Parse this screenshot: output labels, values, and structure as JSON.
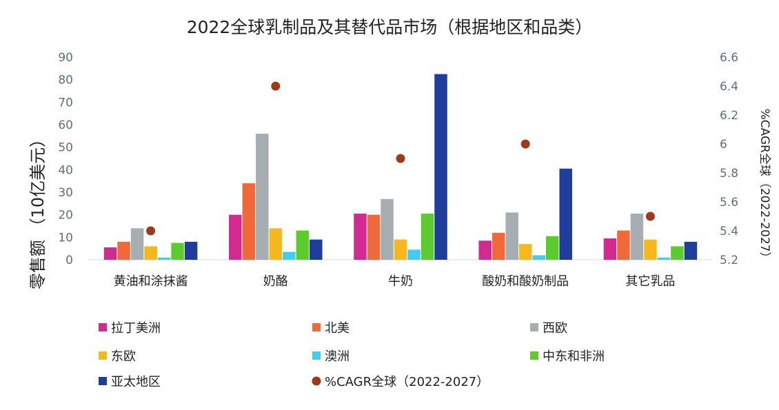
{
  "chart_data": {
    "type": "bar",
    "title": "2022全球乳制品及其替代品市场（根据地区和品类）",
    "ylabel": "零售额  （10亿美元）",
    "y2label": "%CAGR全球（2022-2027）",
    "categories": [
      "黄油和涂抹酱",
      "奶酪",
      "牛奶",
      "酸奶和酸奶制品",
      "其它乳品"
    ],
    "ylim": [
      0,
      90
    ],
    "yticks": [
      "0",
      "10",
      "20",
      "30",
      "40",
      "50",
      "60",
      "70",
      "80",
      "90"
    ],
    "y2lim": [
      5.2,
      6.6
    ],
    "y2ticks": [
      "5.2",
      "5.4",
      "5.6",
      "5.8",
      "6",
      "6.2",
      "6.4",
      "6.6"
    ],
    "series": [
      {
        "name": "拉丁美洲",
        "color": "#d12b91",
        "values": [
          5.5,
          20,
          20.5,
          8.5,
          9.5
        ]
      },
      {
        "name": "北美",
        "color": "#f0693a",
        "values": [
          8,
          34,
          20,
          12,
          13
        ]
      },
      {
        "name": "西欧",
        "color": "#a6aeb1",
        "values": [
          14,
          56,
          27,
          21,
          20.5
        ]
      },
      {
        "name": "东欧",
        "color": "#f7b81f",
        "values": [
          6,
          14,
          9,
          7,
          9
        ]
      },
      {
        "name": "澳洲",
        "color": "#42cdef",
        "values": [
          1,
          3.5,
          4.5,
          2,
          1
        ]
      },
      {
        "name": "中东和非洲",
        "color": "#5ccb2d",
        "values": [
          7.5,
          13,
          20.5,
          10.5,
          6
        ]
      },
      {
        "name": "亚太地区",
        "color": "#1f3d9b",
        "values": [
          8,
          9,
          82.5,
          40.5,
          8
        ]
      }
    ],
    "cagr": {
      "name": "%CAGR全球（2022-2027）",
      "color": "#a0381a",
      "values": [
        5.4,
        6.4,
        5.9,
        6.0,
        5.5
      ]
    },
    "grid": false,
    "legend_position": "bottom"
  }
}
